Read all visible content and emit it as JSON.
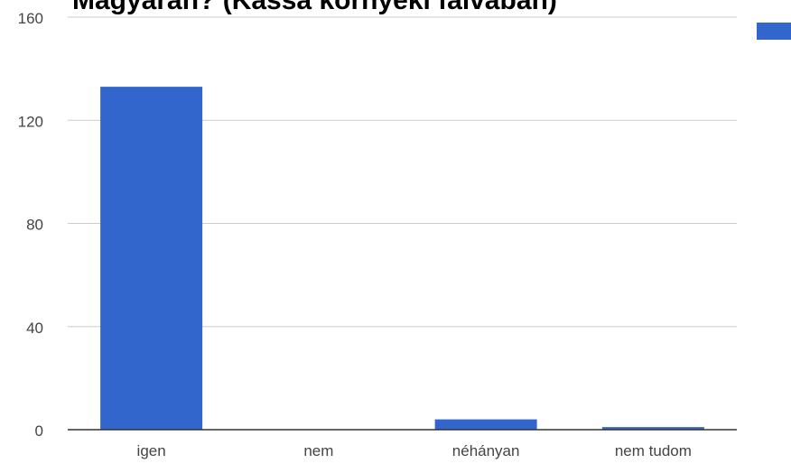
{
  "chart_data": {
    "type": "bar",
    "title": "Magyarán? (Kassa környéki falvában)",
    "xlabel": "",
    "ylabel": "",
    "categories": [
      "igen",
      "nem",
      "néhányan",
      "nem tudom"
    ],
    "series": [
      {
        "values": [
          133,
          0,
          4,
          1
        ]
      }
    ],
    "ylim": [
      0,
      160
    ],
    "yticks": [
      0,
      40,
      80,
      120,
      160
    ],
    "ytick_labels": [
      "0",
      "40",
      "80",
      "120",
      "160"
    ],
    "grid": true,
    "legend": "top-right",
    "colors": {
      "bar": "#3366cc",
      "grid": "#cccccc",
      "axis": "#333333",
      "text": "#444444"
    }
  }
}
